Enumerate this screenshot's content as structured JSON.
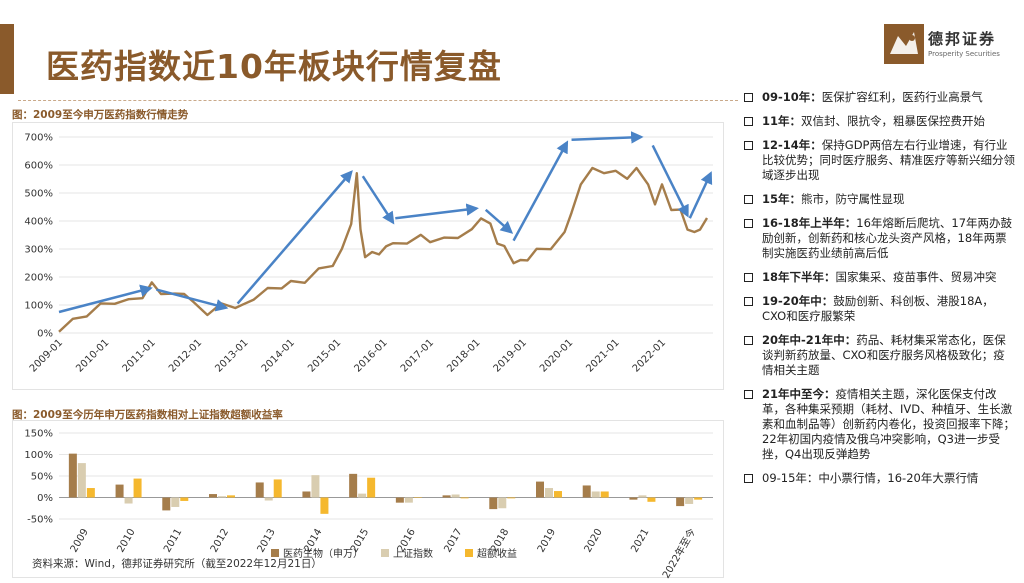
{
  "header": {
    "title": "医药指数近10年板块行情复盘",
    "logo_name": "德邦证券",
    "logo_en": "Prosperity Securities"
  },
  "colors": {
    "brown": "#a57d4b",
    "beige": "#d9cdb0",
    "gold": "#f5b82e",
    "arrow": "#4a83c6",
    "accent": "#8a5a2b"
  },
  "chart1_caption": "图：2009至今申万医药指数行情走势",
  "chart2_caption": "图：2009至今历年申万医药指数相对上证指数超额收益率",
  "source": "资料来源：Wind，德邦证券研究所（截至2022年12月21日）",
  "chart_data": [
    {
      "type": "line",
      "title": "",
      "y_ticks": [
        "700%",
        "600%",
        "500%",
        "400%",
        "300%",
        "200%",
        "100%",
        "0%"
      ],
      "ylim": [
        0,
        700
      ],
      "x_ticks": [
        "2009-01",
        "2010-01",
        "2011-01",
        "2012-01",
        "2013-01",
        "2014-01",
        "2015-01",
        "2016-01",
        "2017-01",
        "2018-01",
        "2019-01",
        "2020-01",
        "2021-01",
        "2022-01"
      ],
      "x": [
        2009.0,
        2009.3,
        2009.6,
        2009.9,
        2010.2,
        2010.5,
        2010.8,
        2011.0,
        2011.2,
        2011.5,
        2011.7,
        2011.9,
        2012.2,
        2012.5,
        2012.8,
        2012.95,
        2013.2,
        2013.5,
        2013.8,
        2014.0,
        2014.3,
        2014.6,
        2014.9,
        2015.1,
        2015.3,
        2015.42,
        2015.5,
        2015.6,
        2015.75,
        2015.9,
        2016.05,
        2016.2,
        2016.5,
        2016.8,
        2017.0,
        2017.3,
        2017.6,
        2017.9,
        2018.1,
        2018.3,
        2018.45,
        2018.6,
        2018.8,
        2018.95,
        2019.1,
        2019.3,
        2019.6,
        2019.9,
        2020.05,
        2020.25,
        2020.5,
        2020.75,
        2021.0,
        2021.25,
        2021.45,
        2021.7,
        2021.85,
        2022.0,
        2022.2,
        2022.4,
        2022.55,
        2022.7,
        2022.82,
        2022.97
      ],
      "y": [
        15,
        40,
        70,
        95,
        115,
        110,
        135,
        170,
        150,
        130,
        150,
        100,
        75,
        95,
        100,
        90,
        130,
        150,
        170,
        175,
        190,
        220,
        250,
        290,
        400,
        560,
        380,
        260,
        300,
        270,
        320,
        310,
        330,
        340,
        335,
        330,
        350,
        360,
        420,
        380,
        330,
        300,
        260,
        250,
        270,
        290,
        310,
        350,
        440,
        520,
        600,
        560,
        590,
        540,
        600,
        520,
        470,
        520,
        450,
        430,
        380,
        350,
        380,
        400
      ],
      "arrows": [
        [
          2009.0,
          2010.97
        ],
        [
          2011.1,
          2012.6
        ],
        [
          2012.85,
          2015.3
        ],
        [
          2015.55,
          2016.2
        ],
        [
          2016.25,
          2018.0
        ],
        [
          2018.2,
          2018.75
        ],
        [
          2018.8,
          2019.95
        ],
        [
          2020.05,
          2021.55
        ],
        [
          2021.8,
          2022.55
        ],
        [
          2022.6,
          2023.05
        ]
      ],
      "arrow_y": [
        [
          75,
          160
        ],
        [
          155,
          90
        ],
        [
          105,
          575
        ],
        [
          560,
          395
        ],
        [
          410,
          445
        ],
        [
          440,
          360
        ],
        [
          330,
          680
        ],
        [
          690,
          700
        ],
        [
          670,
          420
        ],
        [
          410,
          570
        ]
      ]
    },
    {
      "type": "bar",
      "title": "",
      "categories": [
        "2009",
        "2010",
        "2011",
        "2012",
        "2013",
        "2014",
        "2015",
        "2016",
        "2017",
        "2018",
        "2019",
        "2020",
        "2021",
        "2022年至今"
      ],
      "y_ticks": [
        "150%",
        "100%",
        "50%",
        "0%",
        "-50%"
      ],
      "ylim": [
        -50,
        150
      ],
      "series": [
        {
          "name": "医药生物（申万）",
          "values": [
            102,
            30,
            -30,
            8,
            35,
            14,
            55,
            -12,
            5,
            -27,
            37,
            28,
            -5,
            -20
          ]
        },
        {
          "name": "上证指数",
          "values": [
            80,
            -14,
            -22,
            3,
            -7,
            52,
            9,
            -12,
            7,
            -25,
            22,
            14,
            5,
            -15
          ]
        },
        {
          "name": "超额收益",
          "values": [
            22,
            44,
            -8,
            5,
            42,
            -38,
            46,
            0,
            -2,
            -2,
            15,
            14,
            -10,
            -5
          ]
        }
      ]
    }
  ],
  "notes": [
    {
      "label": "09-10年：",
      "text": "医保扩容红利，医药行业高景气"
    },
    {
      "label": "11年：",
      "text": "双信封、限抗令，粗暴医保控费开始"
    },
    {
      "label": "12-14年：",
      "text": "保持GDP两倍左右行业增速，有行业比较优势；同时医疗服务、精准医疗等新兴细分领域逐步出现"
    },
    {
      "label": "15年：",
      "text": "熊市，防守属性显现"
    },
    {
      "label": "16-18年上半年：",
      "text": "16年熔断后爬坑、17年两办鼓励创新，创新药和核心龙头资产风格，18年两票制实施医药业绩前高后低"
    },
    {
      "label": "18年下半年：",
      "text": "国家集采、疫苗事件、贸易冲突"
    },
    {
      "label": "19-20年中：",
      "text": "鼓励创新、科创板、港股18A，CXO和医疗服繁荣"
    },
    {
      "label": "20年中-21年中：",
      "text": "药品、耗材集采常态化，医保谈判新药放量、CXO和医疗服务风格极致化；疫情相关主题"
    },
    {
      "label": "21年中至今：",
      "text": "疫情相关主题，深化医保支付改革，各种集采预期（耗材、IVD、种植牙、生长激素和血制品等）创新药内卷化，投资回报率下降；22年初国内疫情及俄乌冲突影响，Q3进一步受挫，Q4出现反弹趋势"
    },
    {
      "label": "",
      "text": "09-15年：中小票行情，16-20年大票行情"
    }
  ]
}
